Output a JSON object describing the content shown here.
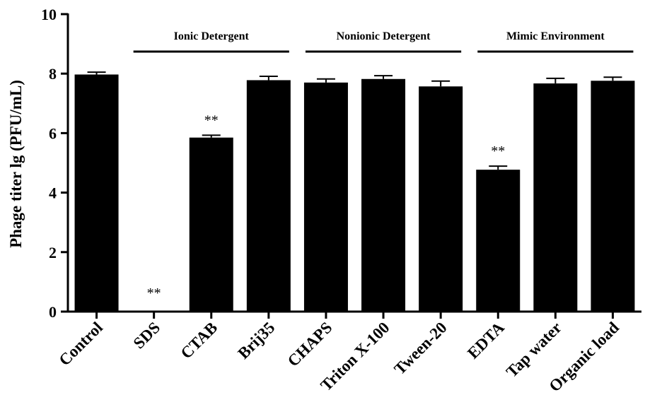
{
  "chart_data": {
    "type": "bar",
    "title": "",
    "xlabel": "",
    "ylabel": "Phage titer lg (PFU/mL)",
    "ylim": [
      0,
      10
    ],
    "yticks": [
      0,
      2,
      4,
      6,
      8,
      10
    ],
    "categories": [
      "Control",
      "SDS",
      "CTAB",
      "Brij35",
      "CHAPS",
      "Triton X-100",
      "Tween-20",
      "EDTA",
      "Tap water",
      "Organic load"
    ],
    "values": [
      7.97,
      0,
      5.85,
      7.78,
      7.7,
      7.82,
      7.57,
      4.77,
      7.67,
      7.76
    ],
    "errors": [
      0.08,
      0,
      0.08,
      0.13,
      0.12,
      0.11,
      0.18,
      0.12,
      0.17,
      0.12
    ],
    "significance": [
      "",
      "**",
      "**",
      "",
      "",
      "",
      "",
      "**",
      "",
      ""
    ],
    "groups": [
      {
        "label": "Ionic Detergent",
        "from": 1,
        "to": 3
      },
      {
        "label": "Nonionic Detergent",
        "from": 4,
        "to": 6
      },
      {
        "label": "Mimic Environment",
        "from": 7,
        "to": 9
      }
    ],
    "grid": false,
    "bar_color": "#000000"
  }
}
